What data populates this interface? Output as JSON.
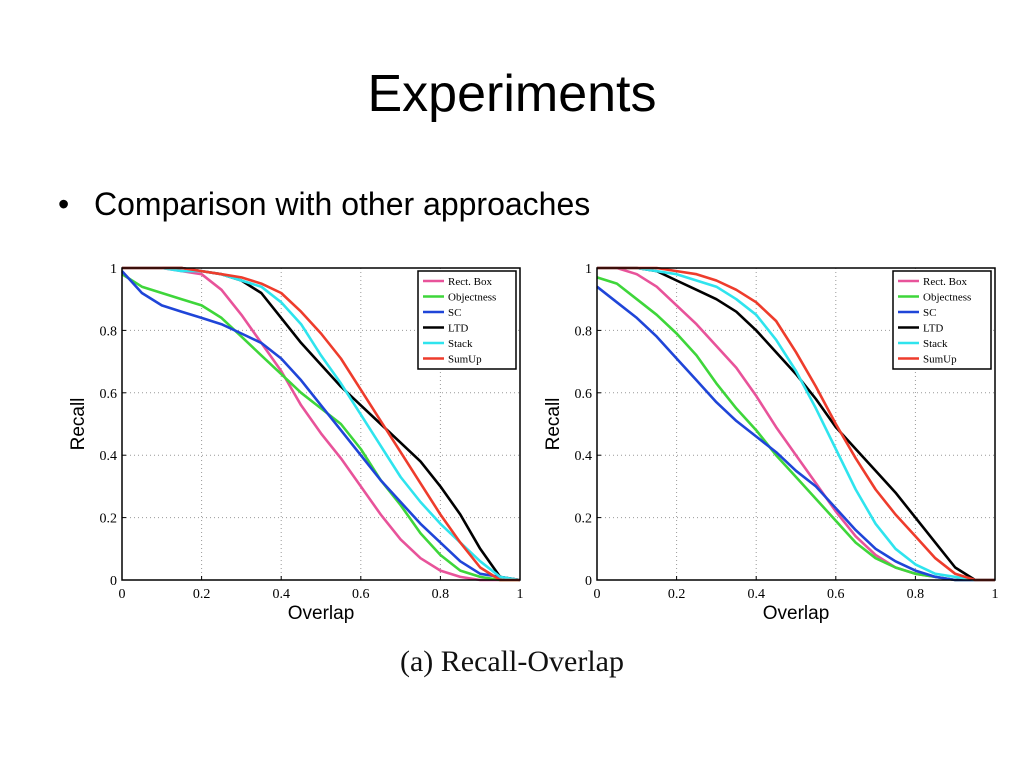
{
  "slide": {
    "title": "Experiments",
    "bullet": "Comparison with other approaches",
    "caption": "(a)  Recall-Overlap"
  },
  "chart_data": [
    {
      "type": "line",
      "xlabel": "Overlap",
      "ylabel": "Recall",
      "xlim": [
        0,
        1
      ],
      "ylim": [
        0,
        1
      ],
      "xticks": [
        "0",
        "0.2",
        "0.4",
        "0.6",
        "0.8",
        "1"
      ],
      "yticks": [
        "0",
        "0.2",
        "0.4",
        "0.6",
        "0.8",
        "1"
      ],
      "grid": true,
      "legend": "top-right",
      "x": [
        0,
        0.05,
        0.1,
        0.15,
        0.2,
        0.25,
        0.3,
        0.35,
        0.4,
        0.45,
        0.5,
        0.55,
        0.6,
        0.65,
        0.7,
        0.75,
        0.8,
        0.85,
        0.9,
        0.95,
        1.0
      ],
      "series": [
        {
          "name": "Rect. Box",
          "color": "#e8539a",
          "values": [
            1.0,
            1.0,
            1.0,
            0.99,
            0.98,
            0.93,
            0.85,
            0.76,
            0.67,
            0.56,
            0.47,
            0.39,
            0.3,
            0.21,
            0.13,
            0.07,
            0.03,
            0.01,
            0.0,
            0.0,
            0.0
          ]
        },
        {
          "name": "Objectness",
          "color": "#3ed63a",
          "values": [
            0.98,
            0.94,
            0.92,
            0.9,
            0.88,
            0.84,
            0.78,
            0.72,
            0.66,
            0.6,
            0.55,
            0.5,
            0.42,
            0.32,
            0.24,
            0.15,
            0.08,
            0.03,
            0.01,
            0.0,
            0.0
          ]
        },
        {
          "name": "SC",
          "color": "#1f45d8",
          "values": [
            0.99,
            0.92,
            0.88,
            0.86,
            0.84,
            0.82,
            0.79,
            0.76,
            0.71,
            0.64,
            0.56,
            0.48,
            0.4,
            0.32,
            0.25,
            0.18,
            0.12,
            0.06,
            0.02,
            0.01,
            0.0
          ]
        },
        {
          "name": "LTD",
          "color": "#000000",
          "values": [
            1.0,
            1.0,
            1.0,
            1.0,
            0.99,
            0.98,
            0.96,
            0.92,
            0.84,
            0.76,
            0.69,
            0.62,
            0.56,
            0.5,
            0.44,
            0.38,
            0.3,
            0.21,
            0.1,
            0.01,
            0.0
          ]
        },
        {
          "name": "Stack",
          "color": "#2fe4ee",
          "values": [
            1.0,
            1.0,
            1.0,
            0.99,
            0.99,
            0.98,
            0.96,
            0.94,
            0.89,
            0.82,
            0.72,
            0.63,
            0.53,
            0.43,
            0.33,
            0.25,
            0.18,
            0.12,
            0.06,
            0.01,
            0.0
          ]
        },
        {
          "name": "SumUp",
          "color": "#ee3c2c",
          "values": [
            1.0,
            1.0,
            1.0,
            1.0,
            0.99,
            0.98,
            0.97,
            0.95,
            0.92,
            0.86,
            0.79,
            0.71,
            0.61,
            0.51,
            0.41,
            0.31,
            0.21,
            0.12,
            0.04,
            0.0,
            0.0
          ]
        }
      ]
    },
    {
      "type": "line",
      "xlabel": "Overlap",
      "ylabel": "Recall",
      "xlim": [
        0,
        1
      ],
      "ylim": [
        0,
        1
      ],
      "xticks": [
        "0",
        "0.2",
        "0.4",
        "0.6",
        "0.8",
        "1"
      ],
      "yticks": [
        "0",
        "0.2",
        "0.4",
        "0.6",
        "0.8",
        "1"
      ],
      "grid": true,
      "legend": "top-right",
      "x": [
        0,
        0.05,
        0.1,
        0.15,
        0.2,
        0.25,
        0.3,
        0.35,
        0.4,
        0.45,
        0.5,
        0.55,
        0.6,
        0.65,
        0.7,
        0.75,
        0.8,
        0.85,
        0.9,
        0.95,
        1.0
      ],
      "series": [
        {
          "name": "Rect. Box",
          "color": "#e8539a",
          "values": [
            1.0,
            1.0,
            0.98,
            0.94,
            0.88,
            0.82,
            0.75,
            0.68,
            0.59,
            0.49,
            0.4,
            0.31,
            0.22,
            0.14,
            0.08,
            0.04,
            0.02,
            0.01,
            0.0,
            0.0,
            0.0
          ]
        },
        {
          "name": "Objectness",
          "color": "#3ed63a",
          "values": [
            0.97,
            0.95,
            0.9,
            0.85,
            0.79,
            0.72,
            0.63,
            0.55,
            0.48,
            0.4,
            0.33,
            0.26,
            0.19,
            0.12,
            0.07,
            0.04,
            0.02,
            0.01,
            0.0,
            0.0,
            0.0
          ]
        },
        {
          "name": "SC",
          "color": "#1f45d8",
          "values": [
            0.94,
            0.89,
            0.84,
            0.78,
            0.71,
            0.64,
            0.57,
            0.51,
            0.46,
            0.41,
            0.35,
            0.3,
            0.23,
            0.16,
            0.1,
            0.06,
            0.03,
            0.01,
            0.0,
            0.0,
            0.0
          ]
        },
        {
          "name": "LTD",
          "color": "#000000",
          "values": [
            1.0,
            1.0,
            1.0,
            0.99,
            0.96,
            0.93,
            0.9,
            0.86,
            0.8,
            0.73,
            0.66,
            0.58,
            0.49,
            0.42,
            0.35,
            0.28,
            0.2,
            0.12,
            0.04,
            0.0,
            0.0
          ]
        },
        {
          "name": "Stack",
          "color": "#2fe4ee",
          "values": [
            1.0,
            1.0,
            1.0,
            0.99,
            0.98,
            0.96,
            0.94,
            0.9,
            0.85,
            0.77,
            0.67,
            0.55,
            0.42,
            0.29,
            0.18,
            0.1,
            0.05,
            0.02,
            0.01,
            0.0,
            0.0
          ]
        },
        {
          "name": "SumUp",
          "color": "#ee3c2c",
          "values": [
            1.0,
            1.0,
            1.0,
            1.0,
            0.99,
            0.98,
            0.96,
            0.93,
            0.89,
            0.83,
            0.73,
            0.62,
            0.5,
            0.39,
            0.29,
            0.21,
            0.14,
            0.07,
            0.02,
            0.0,
            0.0
          ]
        }
      ]
    }
  ]
}
